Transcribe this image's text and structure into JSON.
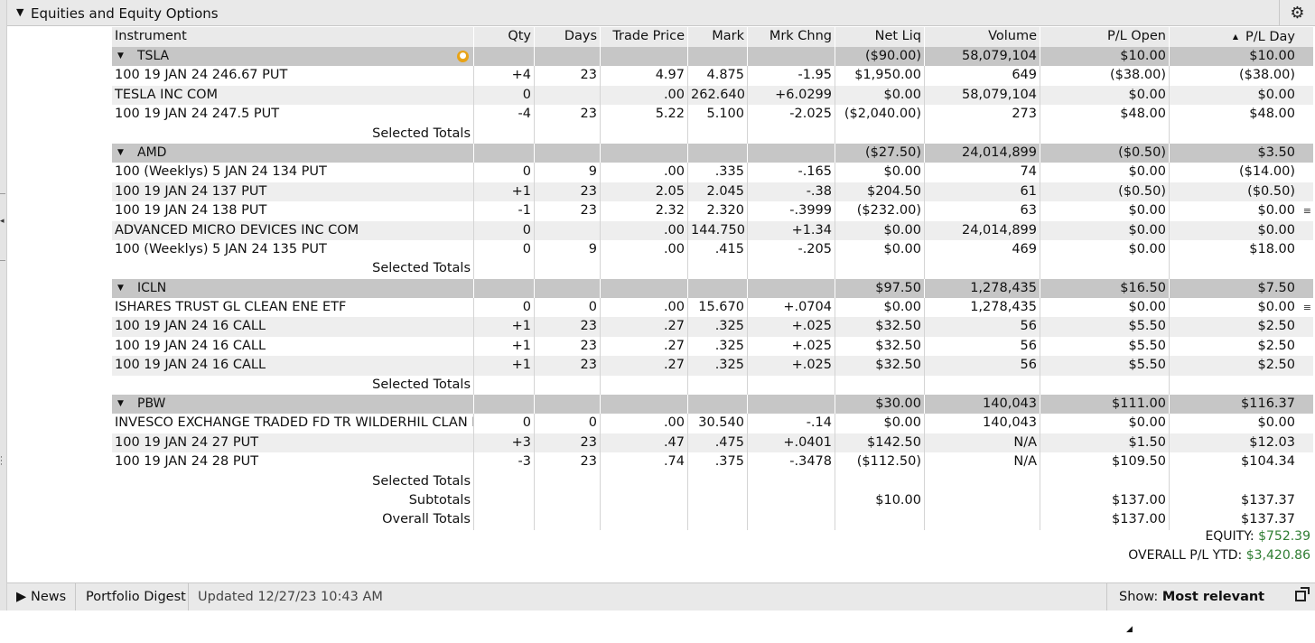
{
  "header": {
    "title": "Equities and Equity Options",
    "collapse_icon": "chevron-down-icon",
    "settings_icon": "gear-icon"
  },
  "columns": {
    "instrument": "Instrument",
    "qty": "Qty",
    "days": "Days",
    "trade_price": "Trade Price",
    "mark": "Mark",
    "mrk_chng": "Mrk Chng",
    "net_liq": "Net Liq",
    "volume": "Volume",
    "pl_open": "P/L Open",
    "pl_day": "P/L Day"
  },
  "sort_indicator": "▲",
  "groups": [
    {
      "name": "TSLA",
      "net_liq": "($90.00)",
      "volume": "58,079,104",
      "pl_open": "$10.00",
      "pl_day": "$10.00",
      "rows": [
        {
          "instrument": "100 19 JAN 24 246.67 PUT",
          "qty": "+4",
          "days": "23",
          "trade_price": "4.97",
          "mark": "4.875",
          "mrk_chng": "-1.95",
          "net_liq": "$1,950.00",
          "volume": "649",
          "pl_open": "($38.00)",
          "pl_day": "($38.00)"
        },
        {
          "instrument": "TESLA INC COM",
          "qty": "0",
          "days": "",
          "trade_price": ".00",
          "mark": "262.640",
          "mrk_chng": "+6.0299",
          "net_liq": "$0.00",
          "volume": "58,079,104",
          "pl_open": "$0.00",
          "pl_day": "$0.00"
        },
        {
          "instrument": "100 19 JAN 24 247.5 PUT",
          "qty": "-4",
          "days": "23",
          "trade_price": "5.22",
          "mark": "5.100",
          "mrk_chng": "-2.025",
          "net_liq": "($2,040.00)",
          "volume": "273",
          "pl_open": "$48.00",
          "pl_day": "$48.00"
        }
      ]
    },
    {
      "name": "AMD",
      "net_liq": "($27.50)",
      "volume": "24,014,899",
      "pl_open": "($0.50)",
      "pl_day": "$3.50",
      "rows": [
        {
          "instrument": "100 (Weeklys) 5 JAN 24 134 PUT",
          "qty": "0",
          "days": "9",
          "trade_price": ".00",
          "mark": ".335",
          "mrk_chng": "-.165",
          "net_liq": "$0.00",
          "volume": "74",
          "pl_open": "$0.00",
          "pl_day": "($14.00)"
        },
        {
          "instrument": "100 19 JAN 24 137 PUT",
          "qty": "+1",
          "days": "23",
          "trade_price": "2.05",
          "mark": "2.045",
          "mrk_chng": "-.38",
          "net_liq": "$204.50",
          "volume": "61",
          "pl_open": "($0.50)",
          "pl_day": "($0.50)"
        },
        {
          "instrument": "100 19 JAN 24 138 PUT",
          "qty": "-1",
          "days": "23",
          "trade_price": "2.32",
          "mark": "2.320",
          "mrk_chng": "-.3999",
          "net_liq": "($232.00)",
          "volume": "63",
          "pl_open": "$0.00",
          "pl_day": "$0.00"
        },
        {
          "instrument": "ADVANCED MICRO DEVICES INC COM",
          "qty": "0",
          "days": "",
          "trade_price": ".00",
          "mark": "144.750",
          "mrk_chng": "+1.34",
          "net_liq": "$0.00",
          "volume": "24,014,899",
          "pl_open": "$0.00",
          "pl_day": "$0.00"
        },
        {
          "instrument": "100 (Weeklys) 5 JAN 24 135 PUT",
          "qty": "0",
          "days": "9",
          "trade_price": ".00",
          "mark": ".415",
          "mrk_chng": "-.205",
          "net_liq": "$0.00",
          "volume": "469",
          "pl_open": "$0.00",
          "pl_day": "$18.00"
        }
      ]
    },
    {
      "name": "ICLN",
      "net_liq": "$97.50",
      "volume": "1,278,435",
      "pl_open": "$16.50",
      "pl_day": "$7.50",
      "rows": [
        {
          "instrument": "ISHARES TRUST GL CLEAN ENE ETF",
          "qty": "0",
          "days": "0",
          "trade_price": ".00",
          "mark": "15.670",
          "mrk_chng": "+.0704",
          "net_liq": "$0.00",
          "volume": "1,278,435",
          "pl_open": "$0.00",
          "pl_day": "$0.00"
        },
        {
          "instrument": "100 19 JAN 24 16 CALL",
          "qty": "+1",
          "days": "23",
          "trade_price": ".27",
          "mark": ".325",
          "mrk_chng": "+.025",
          "net_liq": "$32.50",
          "volume": "56",
          "pl_open": "$5.50",
          "pl_day": "$2.50"
        },
        {
          "instrument": "100 19 JAN 24 16 CALL",
          "qty": "+1",
          "days": "23",
          "trade_price": ".27",
          "mark": ".325",
          "mrk_chng": "+.025",
          "net_liq": "$32.50",
          "volume": "56",
          "pl_open": "$5.50",
          "pl_day": "$2.50"
        },
        {
          "instrument": "100 19 JAN 24 16 CALL",
          "qty": "+1",
          "days": "23",
          "trade_price": ".27",
          "mark": ".325",
          "mrk_chng": "+.025",
          "net_liq": "$32.50",
          "volume": "56",
          "pl_open": "$5.50",
          "pl_day": "$2.50"
        }
      ]
    },
    {
      "name": "PBW",
      "net_liq": "$30.00",
      "volume": "140,043",
      "pl_open": "$111.00",
      "pl_day": "$116.37",
      "rows": [
        {
          "instrument": "INVESCO EXCHANGE TRADED FD TR WILDERHIL CLAN ETF",
          "qty": "0",
          "days": "0",
          "trade_price": ".00",
          "mark": "30.540",
          "mrk_chng": "-.14",
          "net_liq": "$0.00",
          "volume": "140,043",
          "pl_open": "$0.00",
          "pl_day": "$0.00"
        },
        {
          "instrument": "100 19 JAN 24 27 PUT",
          "qty": "+3",
          "days": "23",
          "trade_price": ".47",
          "mark": ".475",
          "mrk_chng": "+.0401",
          "net_liq": "$142.50",
          "volume": "N/A",
          "pl_open": "$1.50",
          "pl_day": "$12.03"
        },
        {
          "instrument": "100 19 JAN 24 28 PUT",
          "qty": "-3",
          "days": "23",
          "trade_price": ".74",
          "mark": ".375",
          "mrk_chng": "-.3478",
          "net_liq": "($112.50)",
          "volume": "N/A",
          "pl_open": "$109.50",
          "pl_day": "$104.34"
        }
      ]
    }
  ],
  "totals": {
    "selected_label": "Selected Totals",
    "subtotals": {
      "label": "Subtotals",
      "net_liq": "$10.00",
      "pl_open": "$137.00",
      "pl_day": "$137.37"
    },
    "overall": {
      "label": "Overall Totals",
      "pl_open": "$137.00",
      "pl_day": "$137.37"
    }
  },
  "summary": {
    "equity_label": "EQUITY:",
    "equity_value": "$752.39",
    "overall_pl_label": "OVERALL P/L YTD:",
    "overall_pl_value": "$3,420.86",
    "value_color": "#2e7d32"
  },
  "footer": {
    "news_label": "News",
    "portfolio_digest_label": "Portfolio Digest",
    "updated_text": "Updated 12/27/23 10:43 AM",
    "show_label": "Show:",
    "show_value": "Most relevant"
  }
}
